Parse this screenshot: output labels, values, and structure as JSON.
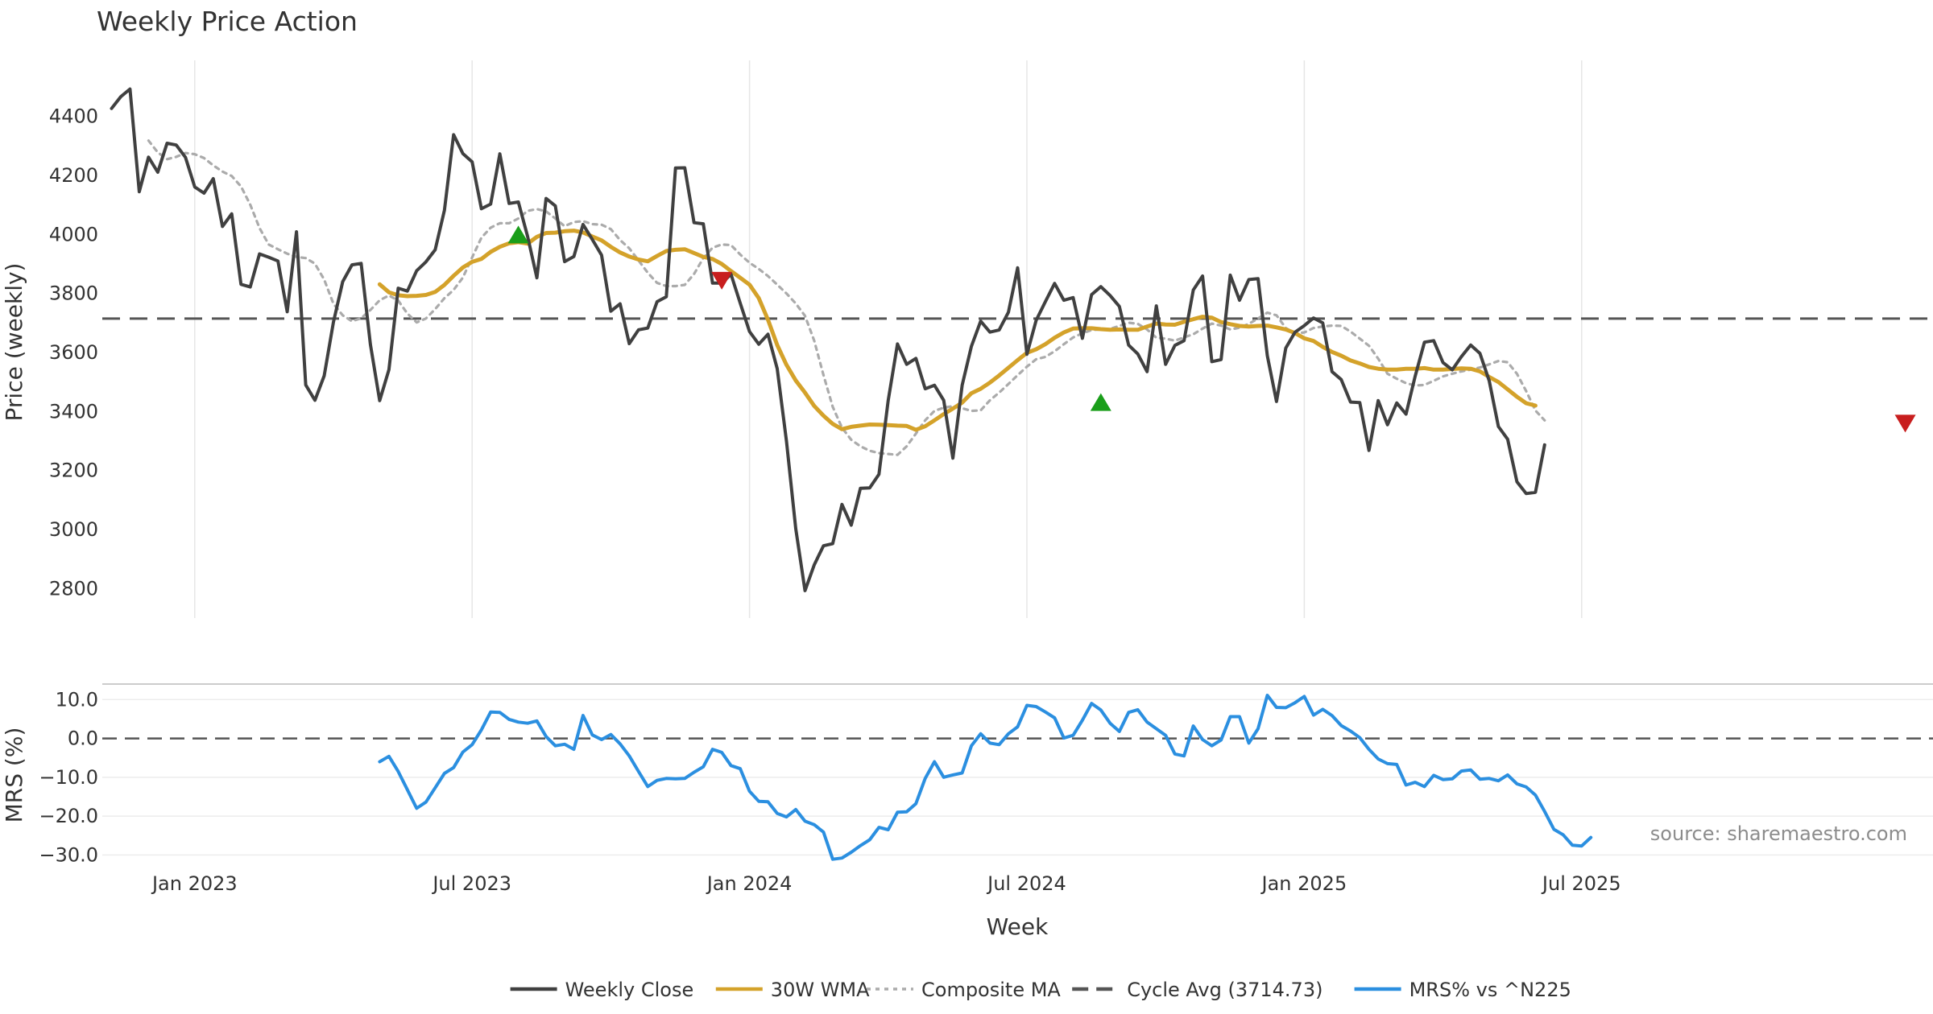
{
  "chart_data": [
    {
      "type": "line",
      "title": "Weekly Price Action",
      "xlabel": "",
      "ylabel": "Price (weekly)",
      "ylim": [
        2700,
        4590
      ],
      "yticks": [
        2800,
        3000,
        3200,
        3400,
        3600,
        3800,
        4000,
        4200,
        4400
      ],
      "x_week_range": [
        -10,
        188
      ],
      "grid": "vertical",
      "cycle_avg": 3714.73,
      "series": [
        {
          "name": "Weekly Close",
          "color": "#404040",
          "start": -9,
          "values": [
            4427,
            4467,
            4493,
            4145,
            4262,
            4211,
            4309,
            4303,
            4261,
            4161,
            4140,
            4189,
            4027,
            4070,
            3831,
            3822,
            3934,
            3923,
            3910,
            3738,
            4009,
            3490,
            3438,
            3521,
            3703,
            3840,
            3897,
            3902,
            3627,
            3437,
            3542,
            3818,
            3808,
            3877,
            3907,
            3948,
            4082,
            4338,
            4274,
            4246,
            4087,
            4103,
            4273,
            4105,
            4110,
            3993,
            3853,
            4122,
            4097,
            3908,
            3925,
            4034,
            3983,
            3930,
            3740,
            3765,
            3630,
            3677,
            3683,
            3772,
            3789,
            4225,
            4226,
            4040,
            4036,
            3835,
            3835,
            3865,
            3767,
            3671,
            3628,
            3662,
            3545,
            3299,
            3003,
            2793,
            2880,
            2945,
            2952,
            3085,
            3015,
            3140,
            3141,
            3187,
            3438,
            3629,
            3560,
            3580,
            3477,
            3489,
            3438,
            3242,
            3489,
            3621,
            3706,
            3669,
            3676,
            3736,
            3887,
            3594,
            3709,
            3772,
            3834,
            3777,
            3786,
            3648,
            3796,
            3823,
            3793,
            3756,
            3625,
            3595,
            3535,
            3758,
            3560,
            3624,
            3640,
            3812,
            3859,
            3569,
            3576,
            3862,
            3777,
            3847,
            3850,
            3589,
            3434,
            3615,
            3669,
            3691,
            3717,
            3700,
            3535,
            3508,
            3432,
            3430,
            3268,
            3437,
            3355,
            3429,
            3391,
            3520,
            3635,
            3640,
            3566,
            3541,
            3586,
            3625,
            3597,
            3504,
            3349,
            3306,
            3162,
            3122,
            3126,
            3287
          ]
        },
        {
          "name": "30W WMA",
          "color": "#d4a22a",
          "start": 20,
          "values": [
            3831,
            3804,
            3794,
            3791,
            3792,
            3795,
            3805,
            3829,
            3860,
            3888,
            3907,
            3917,
            3941,
            3958,
            3970,
            3974,
            3969,
            3992,
            4005,
            4006,
            4011,
            4013,
            4007,
            3993,
            3980,
            3958,
            3939,
            3925,
            3915,
            3909,
            3927,
            3944,
            3948,
            3950,
            3937,
            3924,
            3917,
            3900,
            3876,
            3853,
            3830,
            3784,
            3711,
            3625,
            3558,
            3505,
            3464,
            3419,
            3386,
            3358,
            3340,
            3348,
            3352,
            3356,
            3355,
            3354,
            3352,
            3351,
            3338,
            3350,
            3370,
            3391,
            3410,
            3430,
            3462,
            3477,
            3498,
            3522,
            3548,
            3574,
            3599,
            3611,
            3628,
            3650,
            3668,
            3681,
            3682,
            3682,
            3679,
            3677,
            3678,
            3677,
            3677,
            3688,
            3698,
            3695,
            3694,
            3704,
            3713,
            3721,
            3718,
            3703,
            3696,
            3690,
            3688,
            3690,
            3691,
            3685,
            3678,
            3666,
            3648,
            3639,
            3619,
            3602,
            3589,
            3573,
            3563,
            3551,
            3545,
            3542,
            3542,
            3545,
            3545,
            3547,
            3542,
            3542,
            3544,
            3546,
            3545,
            3536,
            3517,
            3500,
            3475,
            3450,
            3428,
            3420
          ]
        },
        {
          "name": "Composite MA",
          "color": "#ababab",
          "start": -5,
          "values": [
            4318,
            4278,
            4255,
            4263,
            4276,
            4272,
            4259,
            4234,
            4213,
            4198,
            4163,
            4101,
            4022,
            3966,
            3950,
            3935,
            3924,
            3920,
            3901,
            3847,
            3765,
            3726,
            3706,
            3716,
            3744,
            3777,
            3793,
            3776,
            3732,
            3702,
            3715,
            3747,
            3784,
            3812,
            3854,
            3922,
            3989,
            4023,
            4038,
            4038,
            4054,
            4080,
            4086,
            4078,
            4054,
            4028,
            4042,
            4045,
            4035,
            4033,
            4018,
            3981,
            3953,
            3912,
            3870,
            3836,
            3825,
            3825,
            3829,
            3866,
            3920,
            3955,
            3966,
            3964,
            3932,
            3904,
            3883,
            3859,
            3830,
            3800,
            3766,
            3724,
            3640,
            3524,
            3416,
            3345,
            3304,
            3282,
            3267,
            3259,
            3256,
            3253,
            3282,
            3325,
            3370,
            3402,
            3413,
            3418,
            3411,
            3402,
            3404,
            3438,
            3464,
            3493,
            3523,
            3552,
            3577,
            3585,
            3604,
            3628,
            3651,
            3665,
            3676,
            3678,
            3680,
            3690,
            3701,
            3697,
            3678,
            3650,
            3647,
            3640,
            3651,
            3662,
            3681,
            3698,
            3691,
            3678,
            3684,
            3697,
            3715,
            3735,
            3726,
            3683,
            3665,
            3668,
            3683,
            3688,
            3691,
            3690,
            3671,
            3647,
            3623,
            3579,
            3528,
            3511,
            3496,
            3488,
            3490,
            3504,
            3519,
            3528,
            3536,
            3542,
            3549,
            3560,
            3571,
            3567,
            3528,
            3469,
            3403,
            3370
          ]
        }
      ],
      "markers": [
        {
          "type": "buy",
          "color": "#1a9e1a",
          "week": 35,
          "value": 4000
        },
        {
          "type": "sell",
          "color": "#c81e1e",
          "week": 57,
          "value": 3843
        },
        {
          "type": "buy",
          "color": "#1a9e1a",
          "week": 98,
          "value": 3432
        },
        {
          "type": "sell",
          "color": "#c81e1e",
          "week": 185,
          "value": 3359
        }
      ]
    },
    {
      "type": "line",
      "title": "",
      "xlabel": "Week",
      "ylabel": "MRS (%)",
      "ylim": [
        -32,
        14
      ],
      "yticks": [
        -30.0,
        -20.0,
        -10.0,
        0.0,
        10.0
      ],
      "ytick_labels": [
        "−30.0",
        "−20.0",
        "−10.0",
        "0.0",
        "10.0"
      ],
      "x_week_range": [
        -10,
        188
      ],
      "xticks": [
        {
          "label": "Jan 2023",
          "week": 0
        },
        {
          "label": "Jul 2023",
          "week": 30
        },
        {
          "label": "Jan 2024",
          "week": 60
        },
        {
          "label": "Jul 2024",
          "week": 90
        },
        {
          "label": "Jan 2025",
          "week": 120
        },
        {
          "label": "Jul 2025",
          "week": 150
        }
      ],
      "grid": "horizontal",
      "zero_line": 0,
      "series": [
        {
          "name": "MRS% vs ^N225",
          "color": "#2b8fe0",
          "start": 20,
          "values": [
            -6.0,
            -4.6,
            -8.5,
            -13.2,
            -18.0,
            -16.4,
            -12.7,
            -9.0,
            -7.5,
            -3.5,
            -1.6,
            2.2,
            6.8,
            6.7,
            4.9,
            4.2,
            3.9,
            4.5,
            0.5,
            -1.9,
            -1.5,
            -2.8,
            5.9,
            0.9,
            -0.3,
            1.0,
            -1.4,
            -4.5,
            -8.5,
            -12.4,
            -10.8,
            -10.3,
            -10.4,
            -10.3,
            -8.7,
            -7.3,
            -2.8,
            -3.6,
            -7.0,
            -7.8,
            -13.6,
            -16.2,
            -16.3,
            -19.3,
            -20.2,
            -18.3,
            -21.3,
            -22.2,
            -24.1,
            -31.1,
            -30.8,
            -29.3,
            -27.6,
            -26.1,
            -22.9,
            -23.5,
            -19.0,
            -18.9,
            -16.8,
            -10.3,
            -6.0,
            -10.0,
            -9.4,
            -8.9,
            -1.9,
            1.2,
            -1.2,
            -1.6,
            1.2,
            3.0,
            8.5,
            8.2,
            6.8,
            5.3,
            0.1,
            0.8,
            4.7,
            9.0,
            7.3,
            3.9,
            1.8,
            6.7,
            7.4,
            4.2,
            2.5,
            0.8,
            -4.0,
            -4.5,
            3.2,
            -0.3,
            -1.9,
            -0.4,
            5.6,
            5.6,
            -1.2,
            2.5,
            11.1,
            8.0,
            7.9,
            9.2,
            10.8,
            6.0,
            7.5,
            5.9,
            3.3,
            1.9,
            0.2,
            -2.8,
            -5.3,
            -6.5,
            -6.7,
            -12.0,
            -11.3,
            -12.4,
            -9.5,
            -10.6,
            -10.4,
            -8.4,
            -8.1,
            -10.5,
            -10.3,
            -10.9,
            -9.4,
            -11.7,
            -12.5,
            -14.6,
            -18.8,
            -23.4,
            -24.8,
            -27.5,
            -27.7,
            -25.5
          ]
        }
      ]
    }
  ],
  "legend": {
    "position": "bottom-center",
    "entries": [
      {
        "label": "Weekly Close",
        "style": "solid",
        "color": "#404040"
      },
      {
        "label": "30W WMA",
        "style": "solid",
        "color": "#d4a22a"
      },
      {
        "label": "Composite MA",
        "style": "dotted",
        "color": "#ababab"
      },
      {
        "label": "Cycle Avg (3714.73)",
        "style": "dashed",
        "color": "#555555"
      },
      {
        "label": "MRS% vs ^N225",
        "style": "solid",
        "color": "#2b8fe0"
      }
    ]
  },
  "source": "source: sharemaestro.com"
}
